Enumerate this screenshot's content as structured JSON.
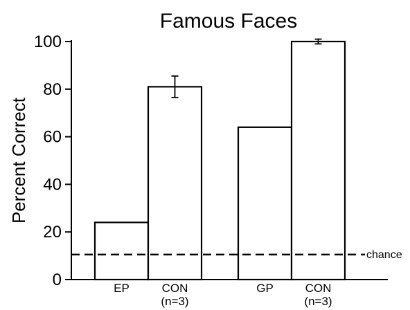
{
  "chart_data": {
    "type": "bar",
    "title": "Famous Faces",
    "ylabel": "Percent Correct",
    "xlabel": "",
    "ylim": [
      0,
      100
    ],
    "yticks": [
      0,
      20,
      40,
      60,
      80,
      100
    ],
    "grid": false,
    "categories": [
      {
        "label": "EP",
        "sublabel": ""
      },
      {
        "label": "CON",
        "sublabel": "(n=3)"
      },
      {
        "label": "GP",
        "sublabel": ""
      },
      {
        "label": "CON",
        "sublabel": "(n=3)"
      }
    ],
    "values": [
      24,
      81,
      64,
      100
    ],
    "error": [
      null,
      4.5,
      null,
      1
    ],
    "reference_line": {
      "value": 10.5,
      "label": "chance",
      "style": "dashed"
    },
    "colors": {
      "bar_fill": "#ffffff",
      "stroke": "#000000"
    }
  }
}
